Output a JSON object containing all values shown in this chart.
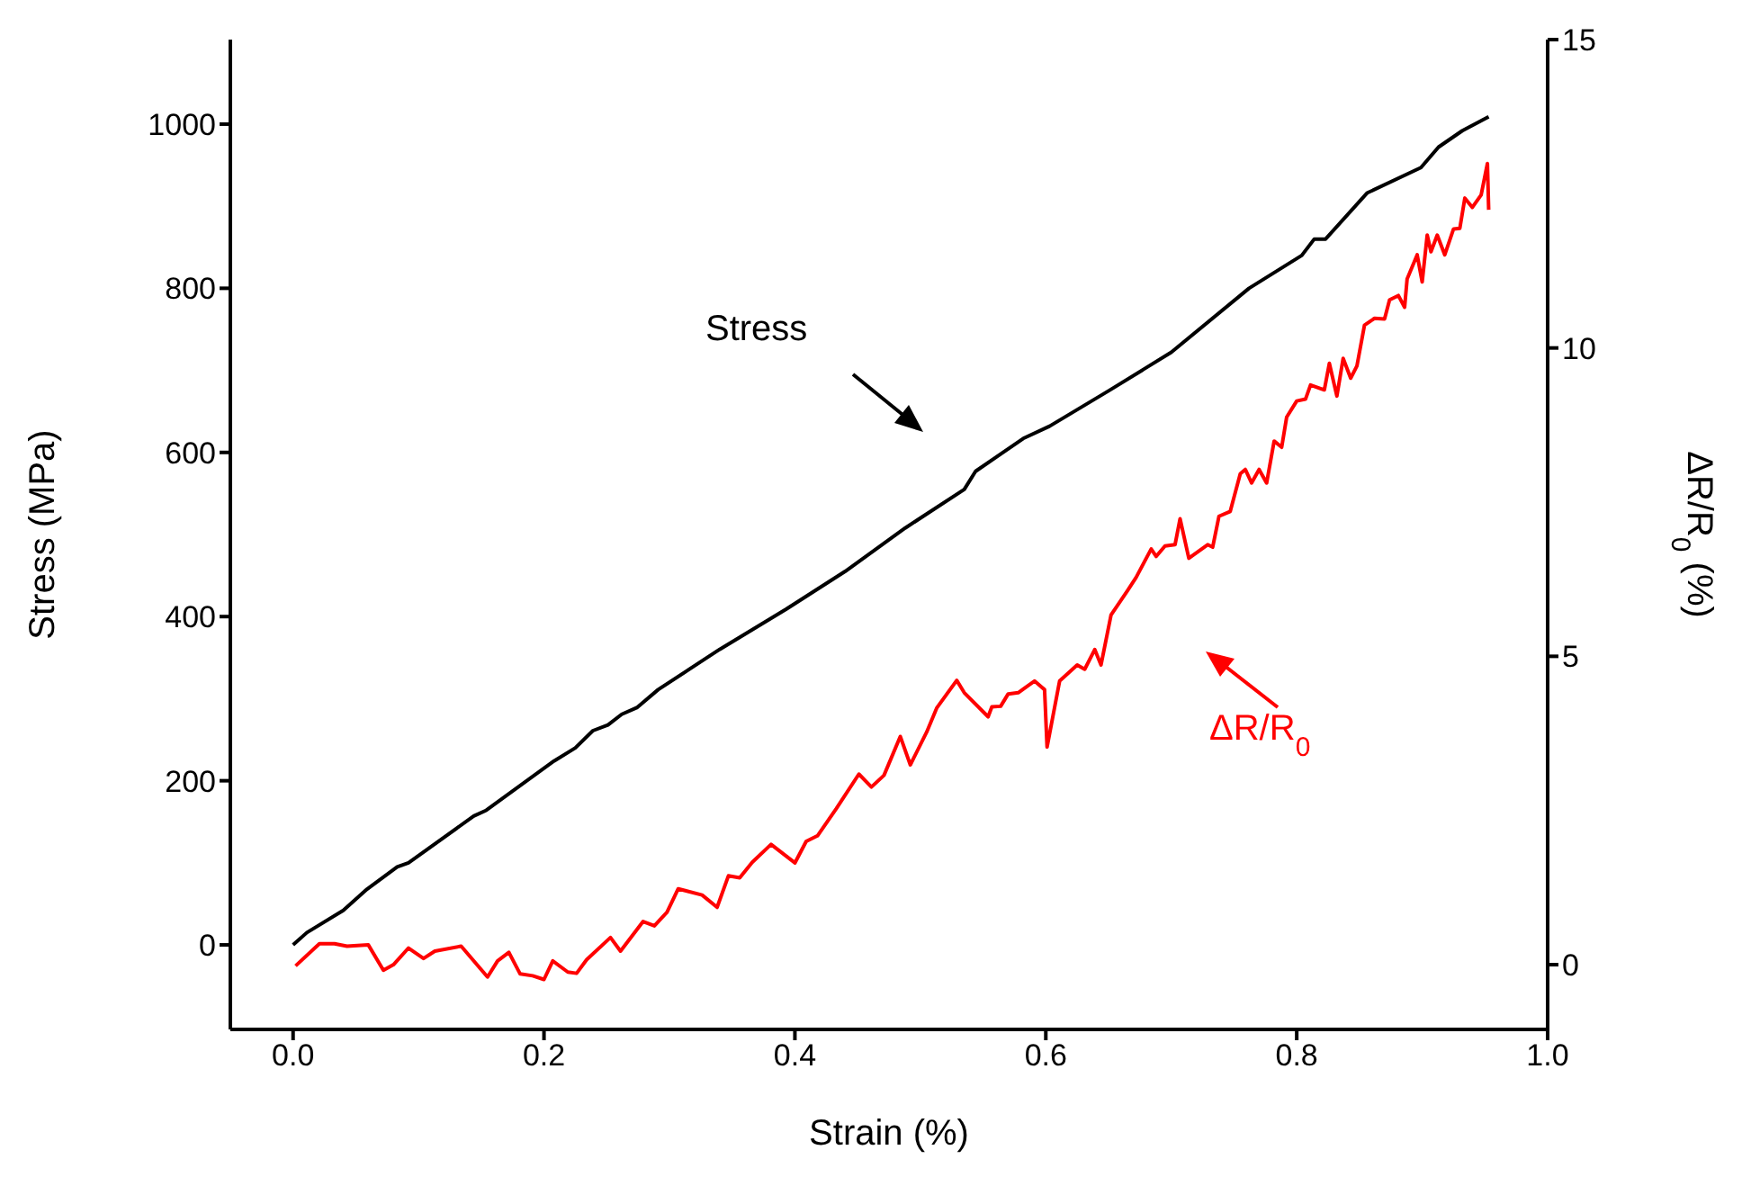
{
  "chart_data": {
    "type": "line",
    "xlabel": "Strain (%)",
    "ylabel": "Stress (MPa)",
    "y2label": "ΔR/R$_{0}$ (%)",
    "xlim": [
      -0.05,
      1.0
    ],
    "xticks": [
      {
        "value": 0,
        "label": "0.0"
      },
      {
        "value": 0.2,
        "label": "0.2"
      },
      {
        "value": 0.4,
        "label": "0.4"
      },
      {
        "value": 0.6,
        "label": "0.6"
      },
      {
        "value": 0.8,
        "label": "0.8"
      },
      {
        "value": 1.0,
        "label": "1.0"
      }
    ],
    "ylim": [
      -103,
      1103
    ],
    "yticks": [
      0,
      200,
      400,
      600,
      800,
      1000
    ],
    "y2lim": [
      -1.05,
      15
    ],
    "y2ticks": [
      0,
      5,
      10,
      15
    ],
    "grid": false,
    "legend": false,
    "marker": "none",
    "line_style": "solid",
    "annotations": [
      "Stress",
      "ΔR/R$_{0}$"
    ],
    "series": [
      {
        "color": "#000000",
        "x": [
          0,
          0.011,
          0.04,
          0.059,
          0.083,
          0.092,
          0.144,
          0.154,
          0.208,
          0.225,
          0.239,
          0.251,
          0.262,
          0.274,
          0.291,
          0.34,
          0.393,
          0.44,
          0.488,
          0.535,
          0.544,
          0.582,
          0.603,
          0.65,
          0.7,
          0.762,
          0.804,
          0.814,
          0.823,
          0.856,
          0.899,
          0.913,
          0.932,
          0.953
        ],
        "values": [
          0,
          15,
          42,
          68,
          95,
          100,
          157,
          164,
          224,
          240,
          261,
          268,
          281,
          289,
          311,
          360,
          409,
          455,
          508,
          555,
          577,
          617,
          632,
          675,
          722,
          800,
          840,
          860,
          860,
          916,
          947,
          972,
          992,
          1009
        ]
      },
      {
        "color": "#ff0000",
        "axis": "y2",
        "x": [
          0.002,
          0.021,
          0.033,
          0.043,
          0.06,
          0.072,
          0.08,
          0.092,
          0.104,
          0.113,
          0.134,
          0.155,
          0.163,
          0.172,
          0.181,
          0.191,
          0.2,
          0.207,
          0.219,
          0.226,
          0.234,
          0.253,
          0.261,
          0.279,
          0.288,
          0.298,
          0.307,
          0.326,
          0.338,
          0.347,
          0.356,
          0.366,
          0.381,
          0.4,
          0.409,
          0.418,
          0.433,
          0.451,
          0.461,
          0.471,
          0.484,
          0.492,
          0.505,
          0.513,
          0.529,
          0.535,
          0.554,
          0.557,
          0.564,
          0.57,
          0.578,
          0.591,
          0.599,
          0.601,
          0.611,
          0.625,
          0.631,
          0.639,
          0.644,
          0.652,
          0.665,
          0.672,
          0.684,
          0.688,
          0.695,
          0.703,
          0.707,
          0.714,
          0.729,
          0.733,
          0.738,
          0.747,
          0.755,
          0.759,
          0.764,
          0.77,
          0.776,
          0.782,
          0.788,
          0.792,
          0.8,
          0.807,
          0.811,
          0.822,
          0.826,
          0.832,
          0.837,
          0.843,
          0.848,
          0.854,
          0.862,
          0.87,
          0.874,
          0.881,
          0.886,
          0.888,
          0.896,
          0.9,
          0.904,
          0.907,
          0.912,
          0.918,
          0.925,
          0.93,
          0.934,
          0.94,
          0.947,
          0.952,
          0.953
        ],
        "values": [
          -0.02,
          0.34,
          0.34,
          0.3,
          0.32,
          -0.09,
          0,
          0.27,
          0.1,
          0.22,
          0.3,
          -0.2,
          0.06,
          0.2,
          -0.15,
          -0.18,
          -0.24,
          0.06,
          -0.12,
          -0.14,
          0.08,
          0.44,
          0.22,
          0.7,
          0.63,
          0.85,
          1.23,
          1.13,
          0.93,
          1.44,
          1.41,
          1.66,
          1.95,
          1.65,
          2,
          2.09,
          2.53,
          3.09,
          2.88,
          3.07,
          3.7,
          3.24,
          3.77,
          4.16,
          4.61,
          4.41,
          4.02,
          4.18,
          4.19,
          4.39,
          4.41,
          4.6,
          4.46,
          3.53,
          4.6,
          4.86,
          4.79,
          5.11,
          4.86,
          5.67,
          6.06,
          6.28,
          6.74,
          6.62,
          6.79,
          6.81,
          7.23,
          6.59,
          6.81,
          6.77,
          7.27,
          7.35,
          7.96,
          8.03,
          7.81,
          8.03,
          7.81,
          8.49,
          8.39,
          8.88,
          9.14,
          9.17,
          9.4,
          9.32,
          9.75,
          9.22,
          9.83,
          9.51,
          9.71,
          10.37,
          10.48,
          10.47,
          10.78,
          10.85,
          10.66,
          11.12,
          11.51,
          11.07,
          11.83,
          11.56,
          11.83,
          11.51,
          11.93,
          11.94,
          12.43,
          12.28,
          12.48,
          12.99,
          12.24
        ]
      }
    ]
  }
}
